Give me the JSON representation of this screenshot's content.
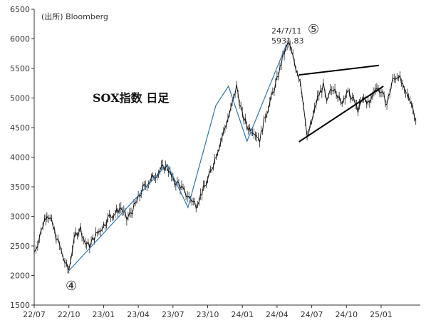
{
  "chart_data": {
    "type": "line",
    "title": "SOX指数 日足",
    "source": "(出所)   Bloomberg",
    "ylim": [
      1500,
      6500
    ],
    "y_ticks": [
      1500,
      2000,
      2500,
      3000,
      3500,
      4000,
      4500,
      5000,
      5500,
      6000,
      6500
    ],
    "x_ticks": [
      "22/07",
      "22/10",
      "23/01",
      "23/04",
      "23/07",
      "23/10",
      "24/01",
      "24/04",
      "24/07",
      "24/10",
      "25/01"
    ],
    "grid": false,
    "series": [
      {
        "style": "candlestick-approximation",
        "x": [
          0,
          0.3,
          0.6,
          0.9,
          1.1,
          1.5,
          1.9,
          2.2,
          2.5,
          2.8,
          3.0,
          3.3,
          3.6,
          4.0,
          4.4,
          4.8,
          5.2,
          5.6,
          6.0,
          6.5,
          7.0,
          7.5,
          8.0,
          8.5,
          9.0,
          9.5,
          10.0,
          10.5,
          11.0,
          11.5,
          12.0,
          12.5,
          13.0,
          13.5,
          14.0,
          14.5,
          15.0,
          15.5,
          16.0,
          16.5,
          17.0,
          17.5,
          18.0,
          18.5,
          19.0,
          19.5,
          20.0,
          20.5,
          21.0,
          21.5,
          22.0,
          22.5,
          23.0,
          23.3,
          23.6,
          24.0,
          24.5,
          25.0,
          25.3,
          25.6,
          26.0,
          26.5,
          27.0,
          27.5,
          28.0,
          28.5,
          29.0,
          29.5,
          30.0,
          30.5,
          31.0,
          31.5,
          32.0,
          32.5,
          33.0
        ],
        "y": [
          2400,
          2550,
          2750,
          2950,
          3050,
          2900,
          2650,
          2500,
          2300,
          2150,
          2100,
          2450,
          2700,
          2800,
          2550,
          2500,
          2650,
          2750,
          2850,
          3000,
          3050,
          3150,
          2950,
          3100,
          3300,
          3500,
          3600,
          3700,
          3800,
          3850,
          3600,
          3550,
          3400,
          3300,
          3200,
          3400,
          3600,
          3900,
          4200,
          4500,
          4800,
          5200,
          4700,
          4500,
          4450,
          4300,
          4700,
          5000,
          5300,
          5700,
          5931.83,
          5600,
          5300,
          4900,
          4300,
          4600,
          5000,
          5200,
          4900,
          5100,
          5200,
          4900,
          5100,
          5000,
          4800,
          5000,
          4900,
          5200,
          5100,
          4900,
          5300,
          5400,
          5100,
          5000,
          4650
        ]
      }
    ],
    "annotations": [
      {
        "text": "24/7/11",
        "note_for": "peak"
      },
      {
        "text": "5931.83",
        "note_for": "peak"
      },
      {
        "text": "④",
        "note_for": "wave-4"
      },
      {
        "text": "⑤",
        "note_for": "wave-5"
      }
    ],
    "trendlines": [
      {
        "name": "wave-overlay",
        "color": "#2e75b6",
        "points": [
          [
            3.0,
            2080
          ],
          [
            11.5,
            3880
          ],
          [
            13.3,
            3150
          ],
          [
            15.7,
            4870
          ],
          [
            16.8,
            5200
          ],
          [
            18.4,
            4270
          ],
          [
            21.8,
            5900
          ]
        ]
      },
      {
        "name": "triangle-upper",
        "color": "#000000",
        "points": [
          [
            22.9,
            5390
          ],
          [
            29.8,
            5550
          ]
        ]
      },
      {
        "name": "triangle-lower",
        "color": "#000000",
        "points": [
          [
            22.9,
            4260
          ],
          [
            30.2,
            5200
          ]
        ]
      }
    ]
  }
}
